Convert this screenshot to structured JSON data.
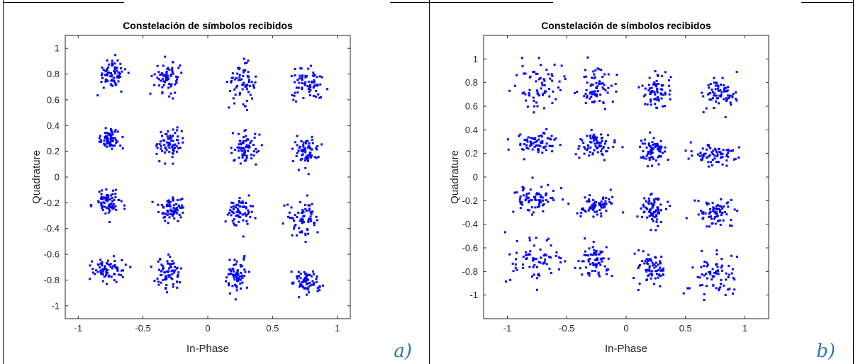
{
  "colors": {
    "marker": "#0000ff",
    "panel_letter": "#2e74b5",
    "axes": "#262626",
    "border": "#000000"
  },
  "panels": [
    {
      "letter": "a)"
    },
    {
      "letter": "b)"
    }
  ],
  "chart_data": [
    {
      "type": "scatter",
      "title": "Constelación de símbolos recibidos",
      "xlabel": "In-Phase",
      "ylabel": "Quadrature",
      "xlim": [
        -1.1,
        1.1
      ],
      "ylim": [
        -1.1,
        1.1
      ],
      "xticks": [
        -1,
        -0.5,
        0,
        0.5,
        1
      ],
      "xtick_labels": [
        "-1",
        "-0.5",
        "0",
        "0.5",
        "1"
      ],
      "yticks": [
        1,
        0.8,
        0.6,
        0.4,
        0.2,
        0,
        -0.2,
        -0.4,
        -0.6,
        -0.8,
        -1
      ],
      "ytick_labels": [
        "1",
        "0.8",
        "0.6",
        "0.4",
        "0.2",
        "0",
        "-0.2",
        "-0.4",
        "-0.6",
        "-0.8",
        "-1"
      ],
      "grid": false,
      "legend": "none",
      "points_per_cluster": 70,
      "clusters": [
        {
          "x": -0.74,
          "y": 0.8,
          "sx": 0.055,
          "sy": 0.06
        },
        {
          "x": -0.3,
          "y": 0.77,
          "sx": 0.055,
          "sy": 0.06
        },
        {
          "x": 0.26,
          "y": 0.74,
          "sx": 0.05,
          "sy": 0.07
        },
        {
          "x": 0.77,
          "y": 0.71,
          "sx": 0.07,
          "sy": 0.06
        },
        {
          "x": -0.75,
          "y": 0.3,
          "sx": 0.05,
          "sy": 0.04
        },
        {
          "x": -0.29,
          "y": 0.26,
          "sx": 0.045,
          "sy": 0.06
        },
        {
          "x": 0.29,
          "y": 0.23,
          "sx": 0.05,
          "sy": 0.06
        },
        {
          "x": 0.75,
          "y": 0.2,
          "sx": 0.055,
          "sy": 0.06
        },
        {
          "x": -0.76,
          "y": -0.2,
          "sx": 0.055,
          "sy": 0.05
        },
        {
          "x": -0.28,
          "y": -0.24,
          "sx": 0.05,
          "sy": 0.05
        },
        {
          "x": 0.26,
          "y": -0.26,
          "sx": 0.055,
          "sy": 0.06
        },
        {
          "x": 0.74,
          "y": -0.33,
          "sx": 0.05,
          "sy": 0.07
        },
        {
          "x": -0.76,
          "y": -0.71,
          "sx": 0.065,
          "sy": 0.05
        },
        {
          "x": -0.3,
          "y": -0.75,
          "sx": 0.05,
          "sy": 0.06
        },
        {
          "x": 0.23,
          "y": -0.77,
          "sx": 0.05,
          "sy": 0.06
        },
        {
          "x": 0.76,
          "y": -0.82,
          "sx": 0.05,
          "sy": 0.05
        }
      ]
    },
    {
      "type": "scatter",
      "title": "Constelación de símbolos recibidos",
      "xlabel": "In-Phase",
      "ylabel": "Quadrature",
      "xlim": [
        -1.2,
        1.2
      ],
      "ylim": [
        -1.2,
        1.2
      ],
      "xticks": [
        -1,
        -0.5,
        0,
        0.5,
        1
      ],
      "xtick_labels": [
        "-1",
        "-0.5",
        "0",
        "0.5",
        "1"
      ],
      "yticks": [
        1,
        0.8,
        0.6,
        0.4,
        0.2,
        0,
        -0.2,
        -0.4,
        -0.6,
        -0.8,
        -1
      ],
      "ytick_labels": [
        "1",
        "0.8",
        "0.6",
        "0.4",
        "0.2",
        "0",
        "-0.2",
        "-0.4",
        "-0.6",
        "-0.8",
        "-1"
      ],
      "grid": false,
      "legend": "none",
      "points_per_cluster": 70,
      "clusters": [
        {
          "x": -0.72,
          "y": 0.78,
          "sx": 0.09,
          "sy": 0.1
        },
        {
          "x": -0.25,
          "y": 0.76,
          "sx": 0.07,
          "sy": 0.08
        },
        {
          "x": 0.26,
          "y": 0.73,
          "sx": 0.06,
          "sy": 0.08
        },
        {
          "x": 0.77,
          "y": 0.72,
          "sx": 0.08,
          "sy": 0.07
        },
        {
          "x": -0.75,
          "y": 0.29,
          "sx": 0.09,
          "sy": 0.05
        },
        {
          "x": -0.25,
          "y": 0.27,
          "sx": 0.07,
          "sy": 0.05
        },
        {
          "x": 0.23,
          "y": 0.23,
          "sx": 0.06,
          "sy": 0.06
        },
        {
          "x": 0.75,
          "y": 0.19,
          "sx": 0.1,
          "sy": 0.05
        },
        {
          "x": -0.78,
          "y": -0.2,
          "sx": 0.09,
          "sy": 0.06
        },
        {
          "x": -0.25,
          "y": -0.23,
          "sx": 0.07,
          "sy": 0.05
        },
        {
          "x": 0.23,
          "y": -0.28,
          "sx": 0.06,
          "sy": 0.06
        },
        {
          "x": 0.75,
          "y": -0.31,
          "sx": 0.07,
          "sy": 0.06
        },
        {
          "x": -0.76,
          "y": -0.7,
          "sx": 0.12,
          "sy": 0.1
        },
        {
          "x": -0.27,
          "y": -0.72,
          "sx": 0.06,
          "sy": 0.07
        },
        {
          "x": 0.22,
          "y": -0.78,
          "sx": 0.06,
          "sy": 0.08
        },
        {
          "x": 0.73,
          "y": -0.84,
          "sx": 0.09,
          "sy": 0.1
        }
      ]
    }
  ]
}
